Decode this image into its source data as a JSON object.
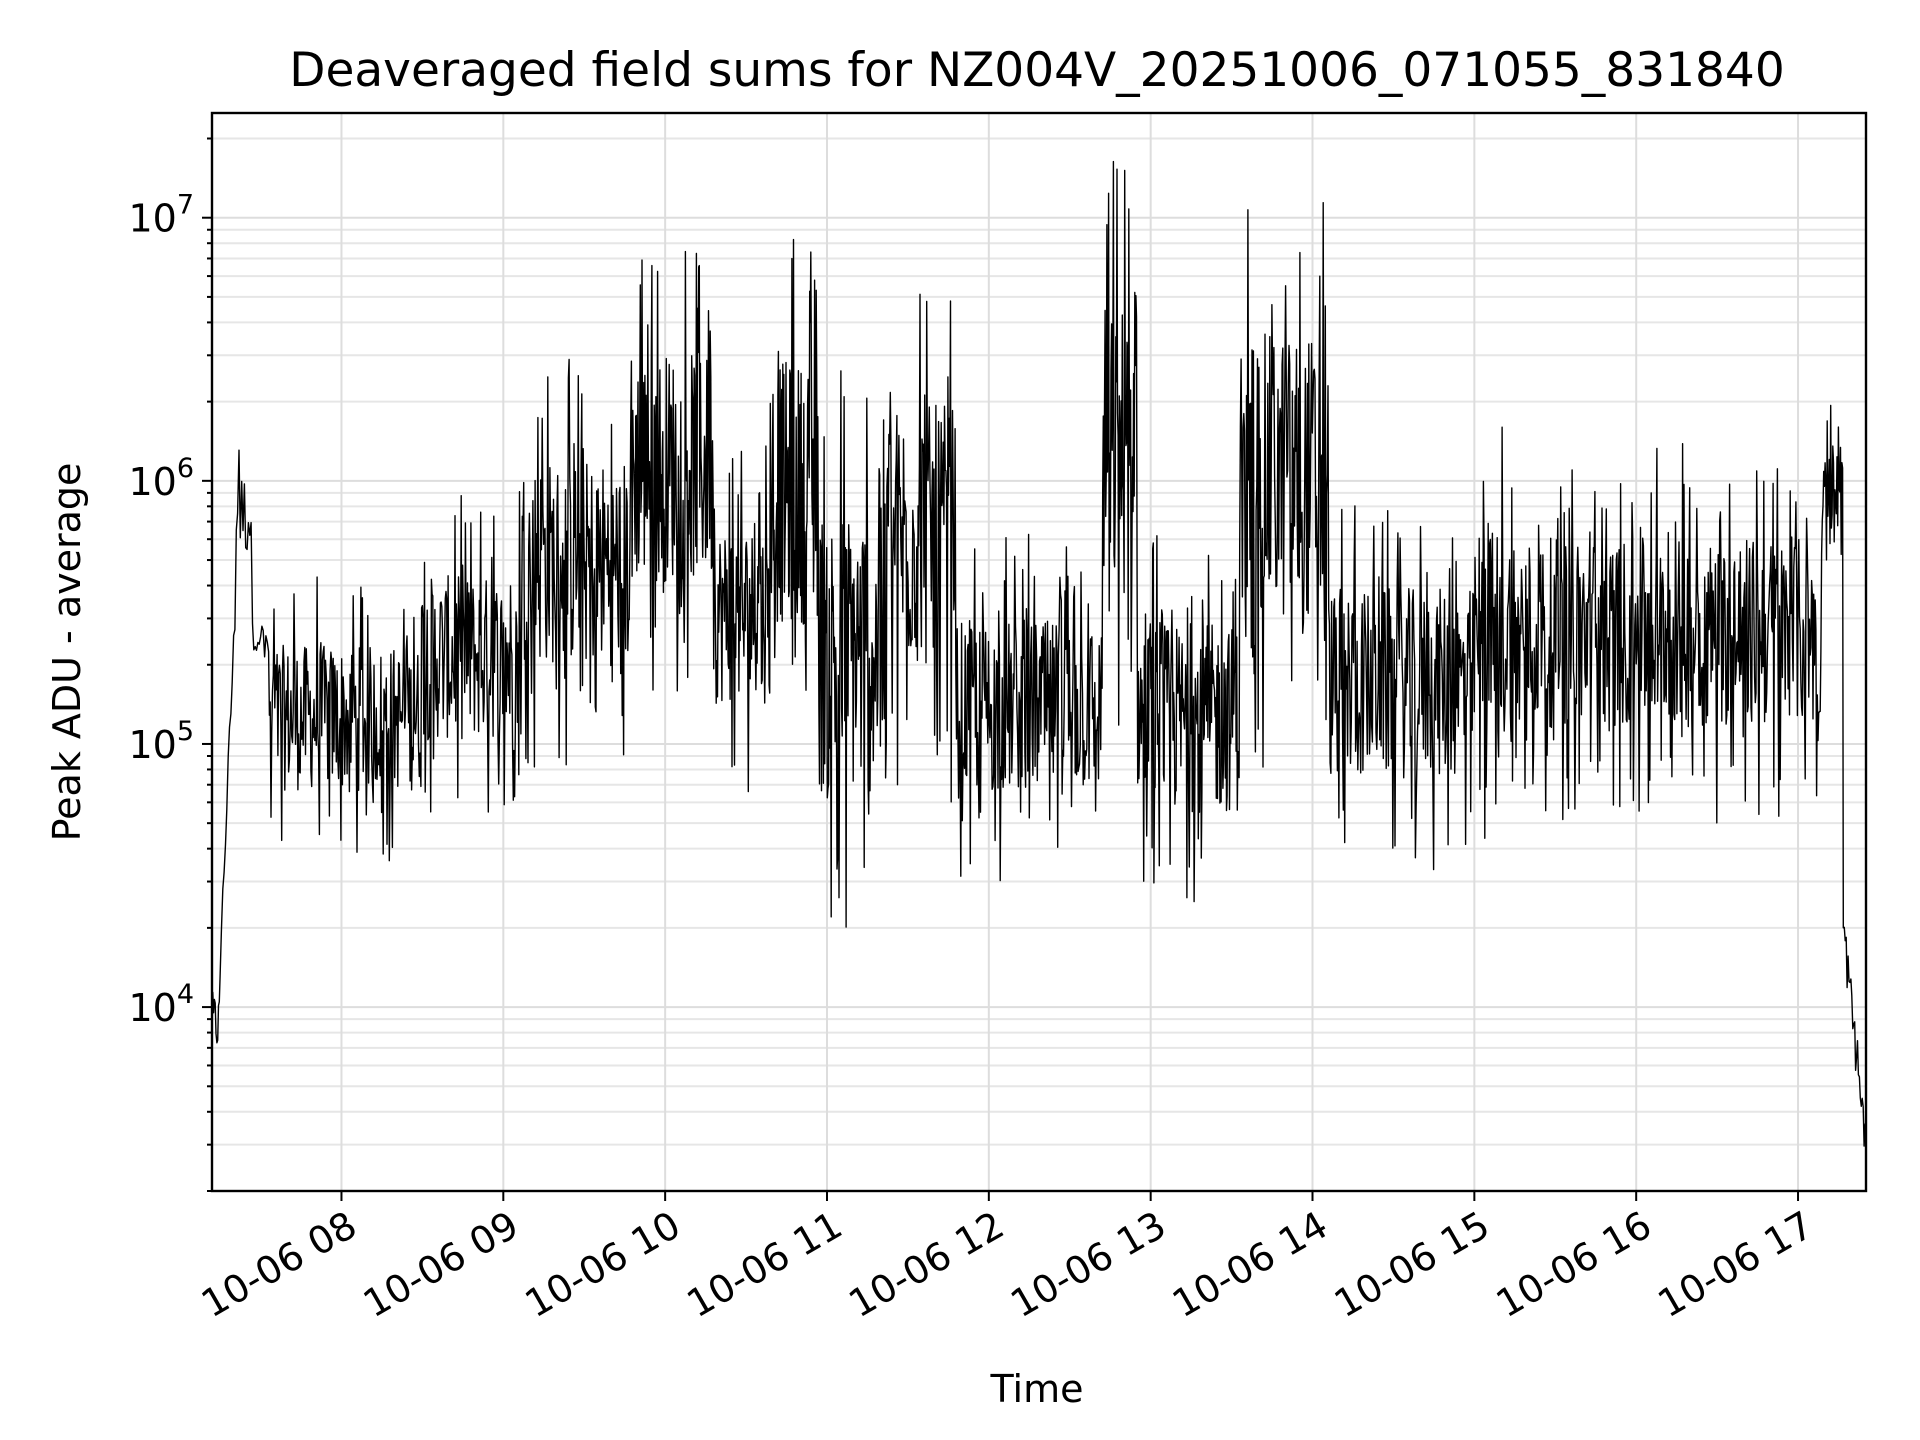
{
  "chart_data": {
    "type": "line",
    "title": "Deaveraged field sums for NZ004V_20251006_071055_831840",
    "xlabel": "Time",
    "ylabel": "Peak ADU - average",
    "yscale": "log",
    "ylim": [
      2000,
      25000000
    ],
    "xlim_hours": [
      7.2,
      17.42
    ],
    "grid": true,
    "x_ticks": [
      {
        "hour": 8,
        "label": "10-06 08"
      },
      {
        "hour": 9,
        "label": "10-06 09"
      },
      {
        "hour": 10,
        "label": "10-06 10"
      },
      {
        "hour": 11,
        "label": "10-06 11"
      },
      {
        "hour": 12,
        "label": "10-06 12"
      },
      {
        "hour": 13,
        "label": "10-06 13"
      },
      {
        "hour": 14,
        "label": "10-06 14"
      },
      {
        "hour": 15,
        "label": "10-06 15"
      },
      {
        "hour": 16,
        "label": "10-06 16"
      },
      {
        "hour": 17,
        "label": "10-06 17"
      }
    ],
    "y_ticks": [
      {
        "value": 10000,
        "base": "10",
        "exp": "4"
      },
      {
        "value": 100000,
        "base": "10",
        "exp": "5"
      },
      {
        "value": 1000000,
        "base": "10",
        "exp": "6"
      },
      {
        "value": 10000000,
        "base": "10",
        "exp": "7"
      }
    ],
    "series": [
      {
        "name": "deaveraged field sums",
        "color": "#000000",
        "segments": [
          {
            "t0": 7.2,
            "t1": 7.25,
            "lo": 5000,
            "hi": 15000,
            "n": 10
          },
          {
            "t0": 7.25,
            "t1": 7.35,
            "lo": 15000,
            "hi": 400000,
            "n": 12,
            "ramp": true
          },
          {
            "t0": 7.35,
            "t1": 7.45,
            "lo": 350000,
            "hi": 1600000,
            "n": 12
          },
          {
            "t0": 7.45,
            "t1": 7.55,
            "lo": 200000,
            "hi": 330000,
            "n": 12
          },
          {
            "t0": 7.55,
            "t1": 8.5,
            "lo": 35000,
            "hi": 450000,
            "n": 200
          },
          {
            "t0": 8.5,
            "t1": 9.1,
            "lo": 50000,
            "hi": 900000,
            "n": 140
          },
          {
            "t0": 9.1,
            "t1": 9.8,
            "lo": 80000,
            "hi": 3000000,
            "n": 160
          },
          {
            "t0": 9.8,
            "t1": 10.3,
            "lo": 150000,
            "hi": 8500000,
            "n": 140
          },
          {
            "t0": 10.3,
            "t1": 10.65,
            "lo": 65000,
            "hi": 1500000,
            "n": 90
          },
          {
            "t0": 10.65,
            "t1": 10.95,
            "lo": 90000,
            "hi": 9000000,
            "n": 90
          },
          {
            "t0": 10.95,
            "t1": 11.35,
            "lo": 18000,
            "hi": 2800000,
            "n": 100
          },
          {
            "t0": 11.35,
            "t1": 11.8,
            "lo": 60000,
            "hi": 6200000,
            "n": 110
          },
          {
            "t0": 11.8,
            "t1": 12.7,
            "lo": 30000,
            "hi": 630000,
            "n": 200
          },
          {
            "t0": 12.7,
            "t1": 12.92,
            "lo": 100000,
            "hi": 17000000,
            "n": 60
          },
          {
            "t0": 12.92,
            "t1": 13.55,
            "lo": 24000,
            "hi": 650000,
            "n": 170
          },
          {
            "t0": 13.55,
            "t1": 14.1,
            "lo": 80000,
            "hi": 13000000,
            "n": 130
          },
          {
            "t0": 14.1,
            "t1": 15.0,
            "lo": 32000,
            "hi": 900000,
            "n": 200
          },
          {
            "t0": 15.0,
            "t1": 15.3,
            "lo": 40000,
            "hi": 1700000,
            "n": 70
          },
          {
            "t0": 15.3,
            "t1": 17.15,
            "lo": 50000,
            "hi": 1400000,
            "n": 420
          },
          {
            "t0": 17.15,
            "t1": 17.28,
            "lo": 500000,
            "hi": 2000000,
            "n": 30
          },
          {
            "t0": 17.28,
            "t1": 17.42,
            "lo": 3000,
            "hi": 20000,
            "n": 24,
            "ramp_down": true
          }
        ]
      }
    ]
  }
}
